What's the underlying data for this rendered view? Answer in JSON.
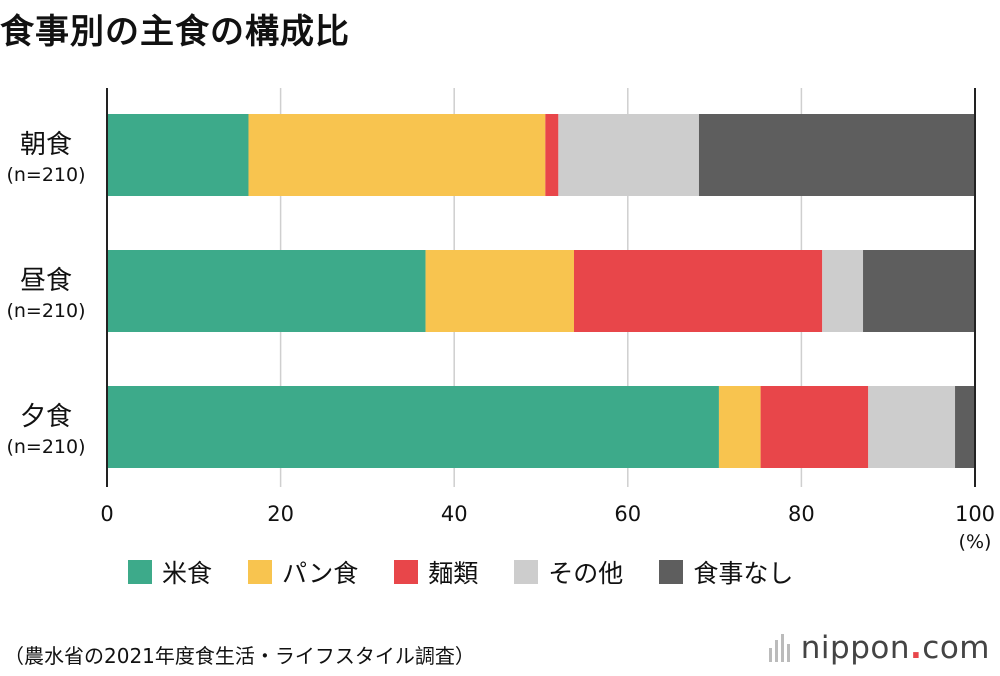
{
  "title": "食事別の主食の構成比",
  "chart_data": {
    "type": "bar",
    "orientation": "horizontal",
    "stacked": true,
    "categories": [
      {
        "name": "朝食",
        "sub": "(n=210)"
      },
      {
        "name": "昼食",
        "sub": "(n=210)"
      },
      {
        "name": "夕食",
        "sub": "(n=210)"
      }
    ],
    "series": [
      {
        "name": "米食",
        "color": "#3daa8a",
        "values": [
          16.3,
          36.7,
          70.5
        ]
      },
      {
        "name": "パン食",
        "color": "#f8c44f",
        "values": [
          34.2,
          17.1,
          4.8
        ]
      },
      {
        "name": "麺類",
        "color": "#e8464a",
        "values": [
          1.5,
          28.6,
          12.4
        ]
      },
      {
        "name": "その他",
        "color": "#cdcdcd",
        "values": [
          16.2,
          4.7,
          10.0
        ]
      },
      {
        "name": "食事なし",
        "color": "#5e5e5e",
        "values": [
          31.8,
          12.9,
          2.3
        ]
      }
    ],
    "x_ticks": [
      "0",
      "20",
      "40",
      "60",
      "80",
      "100"
    ],
    "x_unit": "(%)",
    "xlim": [
      0,
      100
    ],
    "grid": true,
    "legend": "bottom"
  },
  "source": "（農水省の2021年度食生活・ライフスタイル調査）",
  "brand": {
    "name": "nippon",
    "dot": ".",
    "tld": "com"
  }
}
